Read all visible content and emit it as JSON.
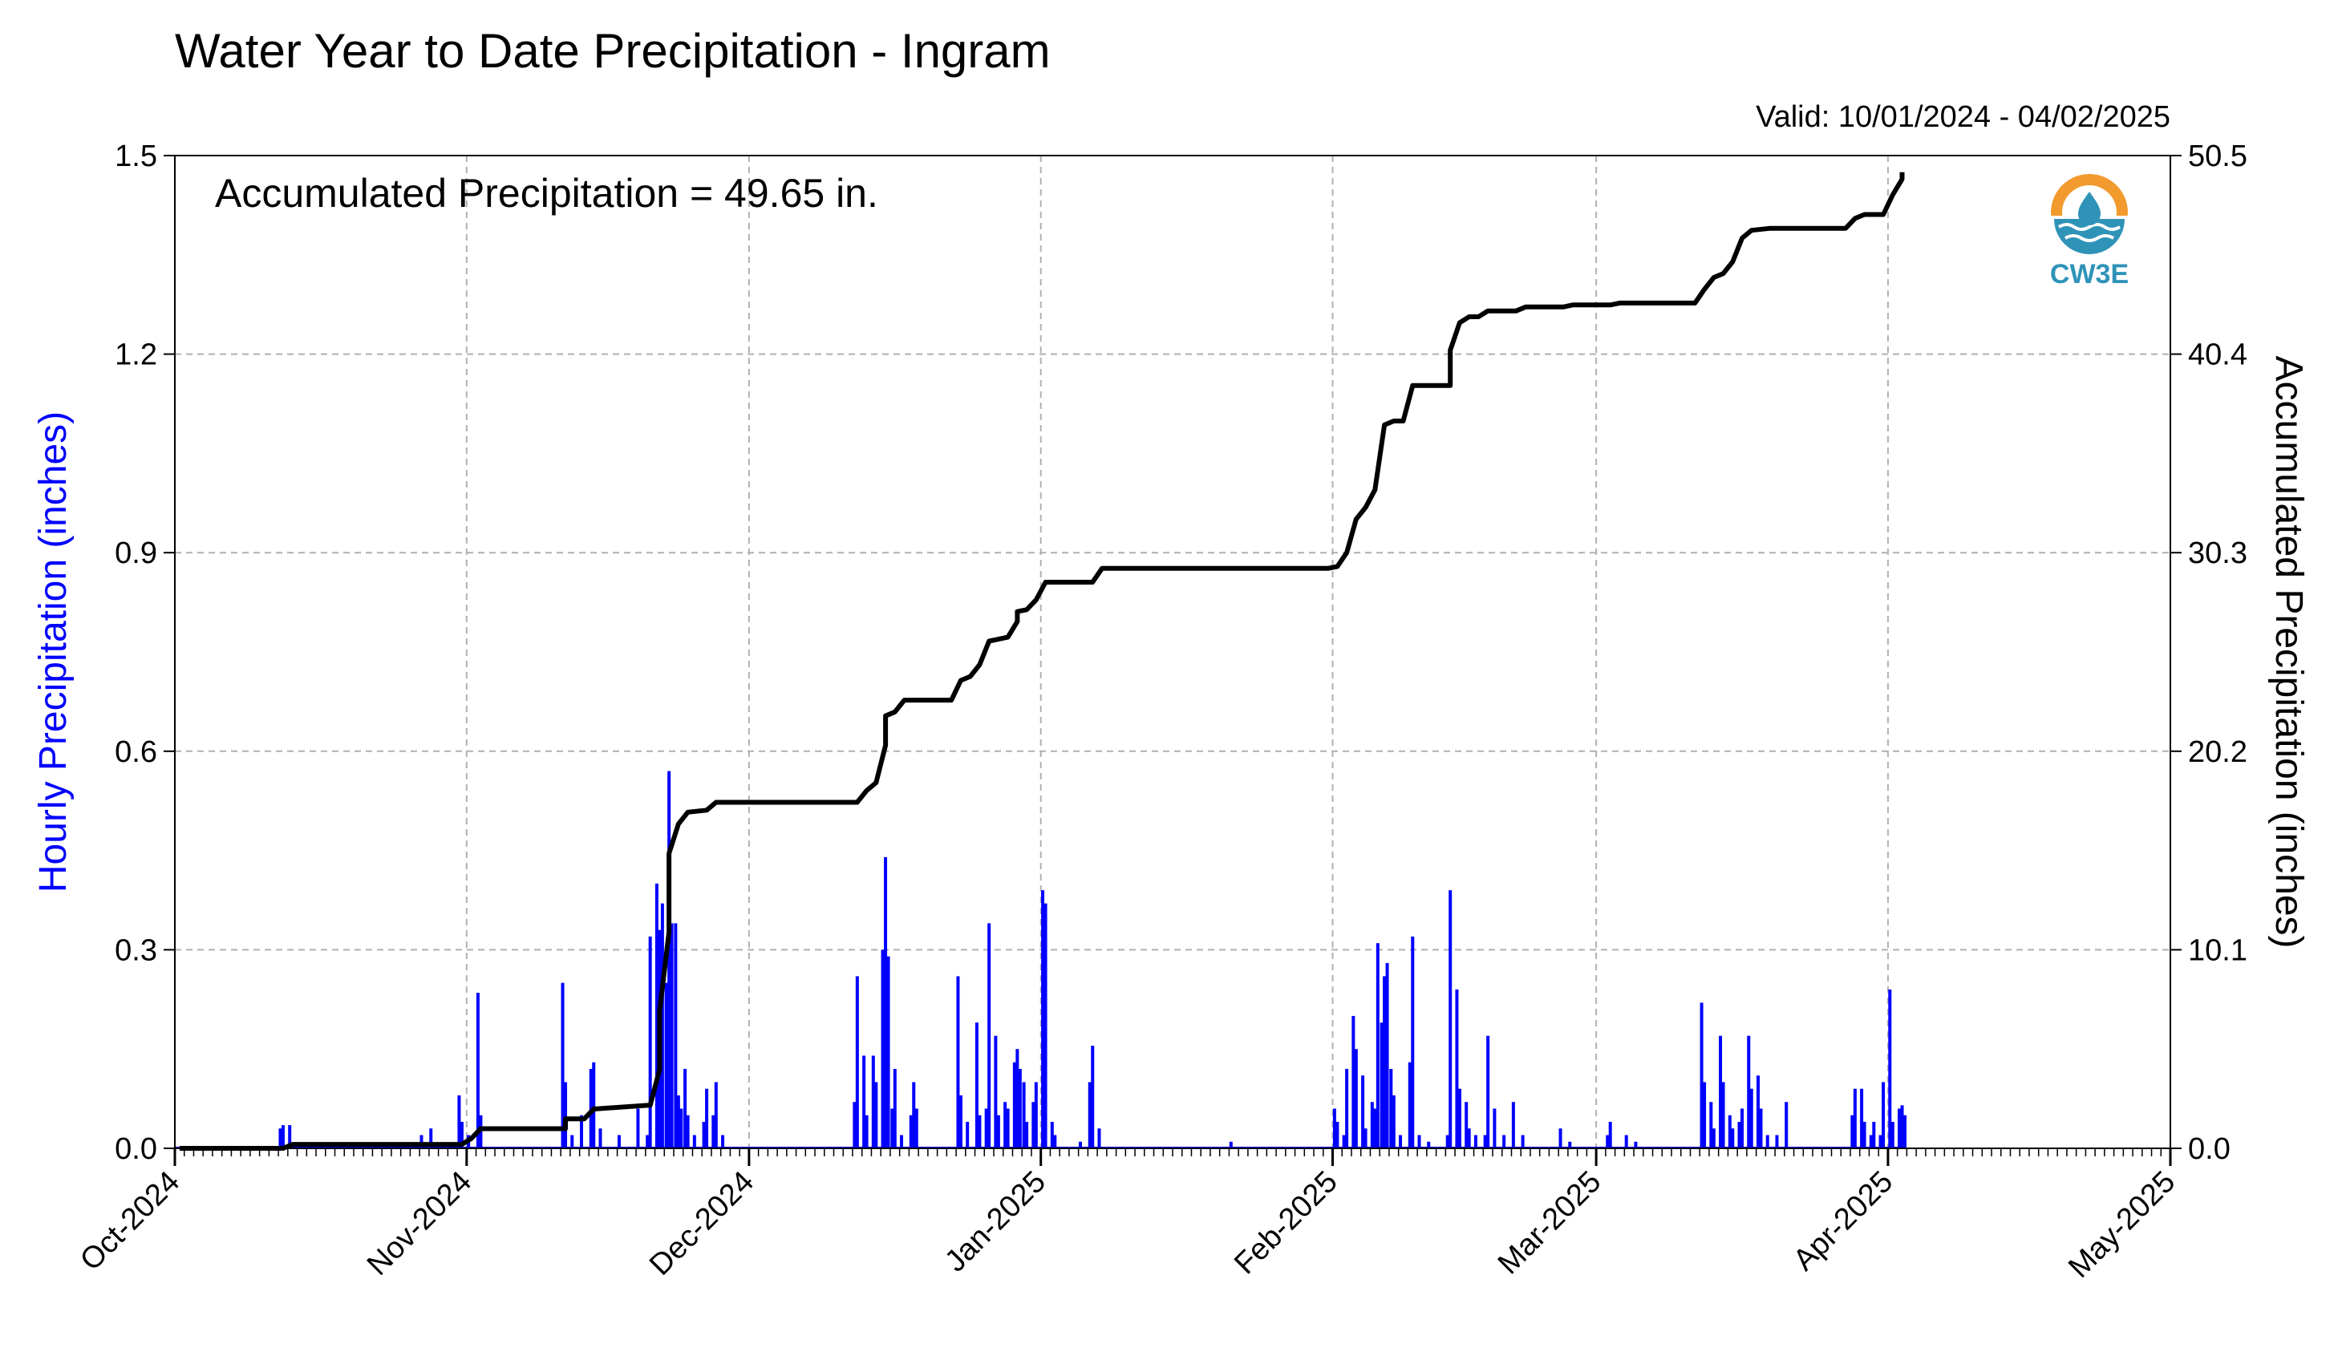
{
  "chart_data": {
    "type": "bar+line",
    "title": "Water Year to Date Precipitation - Ingram",
    "valid_text": "Valid: 10/01/2024 - 04/02/2025",
    "annotation": "Accumulated Precipitation = 49.65 in.",
    "logo_label": "CW3E",
    "ylabel_left": "Hourly Precipitation (inches)",
    "ylabel_right": "Accumulated Precipitation (inches)",
    "ylim_left": [
      0,
      1.5
    ],
    "ylim_right": [
      0,
      50.5
    ],
    "yticks_left": [
      "0.0",
      "0.3",
      "0.6",
      "0.9",
      "1.2",
      "1.5"
    ],
    "yticks_right": [
      "0.0",
      "10.1",
      "20.2",
      "30.3",
      "40.4",
      "50.5"
    ],
    "xlim": [
      "2024-10-01",
      "2025-05-01"
    ],
    "x_ticks": [
      {
        "label": "Oct-2024",
        "date": "2024-10-01"
      },
      {
        "label": "Nov-2024",
        "date": "2024-11-01"
      },
      {
        "label": "Dec-2024",
        "date": "2024-12-01"
      },
      {
        "label": "Jan-2025",
        "date": "2025-01-01"
      },
      {
        "label": "Feb-2025",
        "date": "2025-02-01"
      },
      {
        "label": "Mar-2025",
        "date": "2025-03-01"
      },
      {
        "label": "Apr-2025",
        "date": "2025-04-01"
      },
      {
        "label": "May-2025",
        "date": "2025-05-01"
      }
    ],
    "grid": true,
    "colors": {
      "hourly": "#0000ff",
      "accumulated": "#000000",
      "grid": "#b0b0b0",
      "logo_orange": "#f29a2e",
      "logo_blue": "#2f93b8"
    },
    "hourly_series": {
      "name": "Hourly Precipitation",
      "points": [
        [
          "2024-10-12",
          0.03
        ],
        [
          "2024-10-12",
          0.035
        ],
        [
          "2024-10-13",
          0.035
        ],
        [
          "2024-10-27",
          0.02
        ],
        [
          "2024-10-28",
          0.03
        ],
        [
          "2024-10-31",
          0.08
        ],
        [
          "2024-10-31",
          0.04
        ],
        [
          "2024-11-01",
          0.02
        ],
        [
          "2024-11-02",
          0.235
        ],
        [
          "2024-11-02",
          0.05
        ],
        [
          "2024-11-11",
          0.25
        ],
        [
          "2024-11-11",
          0.1
        ],
        [
          "2024-11-12",
          0.02
        ],
        [
          "2024-11-13",
          0.05
        ],
        [
          "2024-11-14",
          0.12
        ],
        [
          "2024-11-14",
          0.13
        ],
        [
          "2024-11-15",
          0.03
        ],
        [
          "2024-11-17",
          0.02
        ],
        [
          "2024-11-19",
          0.06
        ],
        [
          "2024-11-20",
          0.02
        ],
        [
          "2024-11-20",
          0.32
        ],
        [
          "2024-11-21",
          0.4
        ],
        [
          "2024-11-21",
          0.33
        ],
        [
          "2024-11-21",
          0.37
        ],
        [
          "2024-11-22",
          0.25
        ],
        [
          "2024-11-22",
          0.57
        ],
        [
          "2024-11-22",
          0.34
        ],
        [
          "2024-11-23",
          0.34
        ],
        [
          "2024-11-23",
          0.08
        ],
        [
          "2024-11-23",
          0.06
        ],
        [
          "2024-11-24",
          0.12
        ],
        [
          "2024-11-24",
          0.05
        ],
        [
          "2024-11-25",
          0.02
        ],
        [
          "2024-11-26",
          0.04
        ],
        [
          "2024-11-26",
          0.09
        ],
        [
          "2024-11-27",
          0.05
        ],
        [
          "2024-11-27",
          0.1
        ],
        [
          "2024-11-28",
          0.02
        ],
        [
          "2024-12-12",
          0.07
        ],
        [
          "2024-12-12",
          0.26
        ],
        [
          "2024-12-13",
          0.14
        ],
        [
          "2024-12-13",
          0.05
        ],
        [
          "2024-12-14",
          0.14
        ],
        [
          "2024-12-14",
          0.1
        ],
        [
          "2024-12-15",
          0.3
        ],
        [
          "2024-12-15",
          0.44
        ],
        [
          "2024-12-15",
          0.29
        ],
        [
          "2024-12-16",
          0.06
        ],
        [
          "2024-12-16",
          0.12
        ],
        [
          "2024-12-17",
          0.02
        ],
        [
          "2024-12-18",
          0.05
        ],
        [
          "2024-12-18",
          0.1
        ],
        [
          "2024-12-18",
          0.06
        ],
        [
          "2024-12-23",
          0.26
        ],
        [
          "2024-12-23",
          0.08
        ],
        [
          "2024-12-24",
          0.04
        ],
        [
          "2024-12-25",
          0.19
        ],
        [
          "2024-12-25",
          0.05
        ],
        [
          "2024-12-26",
          0.06
        ],
        [
          "2024-12-26",
          0.34
        ],
        [
          "2024-12-27",
          0.17
        ],
        [
          "2024-12-27",
          0.05
        ],
        [
          "2024-12-28",
          0.07
        ],
        [
          "2024-12-28",
          0.06
        ],
        [
          "2024-12-29",
          0.13
        ],
        [
          "2024-12-29",
          0.15
        ],
        [
          "2024-12-29",
          0.12
        ],
        [
          "2024-12-30",
          0.1
        ],
        [
          "2024-12-30",
          0.04
        ],
        [
          "2024-12-31",
          0.07
        ],
        [
          "2024-12-31",
          0.1
        ],
        [
          "2025-01-01",
          0.39
        ],
        [
          "2025-01-01",
          0.37
        ],
        [
          "2025-01-02",
          0.04
        ],
        [
          "2025-01-02",
          0.02
        ],
        [
          "2025-01-05",
          0.01
        ],
        [
          "2025-01-06",
          0.1
        ],
        [
          "2025-01-06",
          0.155
        ],
        [
          "2025-01-07",
          0.03
        ],
        [
          "2025-01-21",
          0.01
        ],
        [
          "2025-02-01",
          0.06
        ],
        [
          "2025-02-01",
          0.04
        ],
        [
          "2025-02-02",
          0.02
        ],
        [
          "2025-02-02",
          0.12
        ],
        [
          "2025-02-03",
          0.2
        ],
        [
          "2025-02-03",
          0.15
        ],
        [
          "2025-02-04",
          0.11
        ],
        [
          "2025-02-04",
          0.03
        ],
        [
          "2025-02-05",
          0.07
        ],
        [
          "2025-02-05",
          0.06
        ],
        [
          "2025-02-05",
          0.31
        ],
        [
          "2025-02-06",
          0.19
        ],
        [
          "2025-02-06",
          0.26
        ],
        [
          "2025-02-06",
          0.28
        ],
        [
          "2025-02-07",
          0.12
        ],
        [
          "2025-02-07",
          0.08
        ],
        [
          "2025-02-08",
          0.02
        ],
        [
          "2025-02-09",
          0.13
        ],
        [
          "2025-02-09",
          0.32
        ],
        [
          "2025-02-10",
          0.02
        ],
        [
          "2025-02-11",
          0.01
        ],
        [
          "2025-02-13",
          0.02
        ],
        [
          "2025-02-13",
          0.39
        ],
        [
          "2025-02-14",
          0.24
        ],
        [
          "2025-02-14",
          0.09
        ],
        [
          "2025-02-15",
          0.07
        ],
        [
          "2025-02-15",
          0.03
        ],
        [
          "2025-02-16",
          0.02
        ],
        [
          "2025-02-17",
          0.02
        ],
        [
          "2025-02-17",
          0.17
        ],
        [
          "2025-02-18",
          0.06
        ],
        [
          "2025-02-19",
          0.02
        ],
        [
          "2025-02-20",
          0.07
        ],
        [
          "2025-02-21",
          0.02
        ],
        [
          "2025-02-25",
          0.03
        ],
        [
          "2025-02-26",
          0.01
        ],
        [
          "2025-03-02",
          0.02
        ],
        [
          "2025-03-02",
          0.04
        ],
        [
          "2025-03-04",
          0.02
        ],
        [
          "2025-03-05",
          0.01
        ],
        [
          "2025-03-12",
          0.22
        ],
        [
          "2025-03-12",
          0.1
        ],
        [
          "2025-03-13",
          0.07
        ],
        [
          "2025-03-13",
          0.03
        ],
        [
          "2025-03-14",
          0.17
        ],
        [
          "2025-03-14",
          0.1
        ],
        [
          "2025-03-15",
          0.05
        ],
        [
          "2025-03-15",
          0.03
        ],
        [
          "2025-03-16",
          0.04
        ],
        [
          "2025-03-16",
          0.06
        ],
        [
          "2025-03-17",
          0.17
        ],
        [
          "2025-03-17",
          0.09
        ],
        [
          "2025-03-18",
          0.11
        ],
        [
          "2025-03-18",
          0.06
        ],
        [
          "2025-03-19",
          0.02
        ],
        [
          "2025-03-20",
          0.02
        ],
        [
          "2025-03-21",
          0.07
        ],
        [
          "2025-03-28",
          0.05
        ],
        [
          "2025-03-28",
          0.09
        ],
        [
          "2025-03-29",
          0.09
        ],
        [
          "2025-03-29",
          0.04
        ],
        [
          "2025-03-30",
          0.02
        ],
        [
          "2025-03-30",
          0.04
        ],
        [
          "2025-03-31",
          0.02
        ],
        [
          "2025-03-31",
          0.1
        ],
        [
          "2025-04-01",
          0.24
        ],
        [
          "2025-04-01",
          0.04
        ],
        [
          "2025-04-02",
          0.06
        ],
        [
          "2025-04-02",
          0.065
        ],
        [
          "2025-04-02",
          0.05
        ]
      ]
    },
    "accumulated_series": {
      "name": "Accumulated Precipitation",
      "points": [
        [
          "2024-10-01",
          0.0
        ],
        [
          "2024-10-12",
          0.0
        ],
        [
          "2024-10-13",
          0.2
        ],
        [
          "2024-10-31",
          0.2
        ],
        [
          "2024-11-01",
          0.5
        ],
        [
          "2024-11-02",
          1.0
        ],
        [
          "2024-11-11",
          1.0
        ],
        [
          "2024-11-11",
          1.5
        ],
        [
          "2024-11-13",
          1.5
        ],
        [
          "2024-11-14",
          2.0
        ],
        [
          "2024-11-20",
          2.2
        ],
        [
          "2024-11-21",
          4.0
        ],
        [
          "2024-11-21",
          7.0
        ],
        [
          "2024-11-22",
          11.0
        ],
        [
          "2024-11-22",
          15.0
        ],
        [
          "2024-11-23",
          16.5
        ],
        [
          "2024-11-24",
          17.1
        ],
        [
          "2024-11-26",
          17.2
        ],
        [
          "2024-11-27",
          17.6
        ],
        [
          "2024-12-12",
          17.6
        ],
        [
          "2024-12-13",
          18.2
        ],
        [
          "2024-12-14",
          18.6
        ],
        [
          "2024-12-15",
          20.5
        ],
        [
          "2024-12-15",
          22.0
        ],
        [
          "2024-12-16",
          22.2
        ],
        [
          "2024-12-17",
          22.8
        ],
        [
          "2024-12-22",
          22.8
        ],
        [
          "2024-12-23",
          23.8
        ],
        [
          "2024-12-24",
          24.0
        ],
        [
          "2024-12-25",
          24.6
        ],
        [
          "2024-12-26",
          25.8
        ],
        [
          "2024-12-27",
          25.9
        ],
        [
          "2024-12-28",
          26.0
        ],
        [
          "2024-12-29",
          26.8
        ],
        [
          "2024-12-29",
          27.3
        ],
        [
          "2024-12-30",
          27.4
        ],
        [
          "2024-12-31",
          27.9
        ],
        [
          "2025-01-01",
          28.8
        ],
        [
          "2025-01-06",
          28.8
        ],
        [
          "2025-01-07",
          29.5
        ],
        [
          "2025-01-31",
          29.5
        ],
        [
          "2025-02-01",
          29.6
        ],
        [
          "2025-02-02",
          30.3
        ],
        [
          "2025-02-03",
          32.0
        ],
        [
          "2025-02-04",
          32.6
        ],
        [
          "2025-02-05",
          33.5
        ],
        [
          "2025-02-06",
          36.8
        ],
        [
          "2025-02-07",
          37.0
        ],
        [
          "2025-02-08",
          37.0
        ],
        [
          "2025-02-09",
          38.8
        ],
        [
          "2025-02-13",
          38.8
        ],
        [
          "2025-02-13",
          40.6
        ],
        [
          "2025-02-14",
          42.0
        ],
        [
          "2025-02-15",
          42.3
        ],
        [
          "2025-02-16",
          42.3
        ],
        [
          "2025-02-17",
          42.6
        ],
        [
          "2025-02-20",
          42.6
        ],
        [
          "2025-02-21",
          42.8
        ],
        [
          "2025-02-25",
          42.8
        ],
        [
          "2025-02-26",
          42.9
        ],
        [
          "2025-03-02",
          42.9
        ],
        [
          "2025-03-03",
          43.0
        ],
        [
          "2025-03-11",
          43.0
        ],
        [
          "2025-03-12",
          43.7
        ],
        [
          "2025-03-13",
          44.3
        ],
        [
          "2025-03-14",
          44.5
        ],
        [
          "2025-03-15",
          45.1
        ],
        [
          "2025-03-16",
          46.3
        ],
        [
          "2025-03-17",
          46.7
        ],
        [
          "2025-03-19",
          46.8
        ],
        [
          "2025-03-27",
          46.8
        ],
        [
          "2025-03-28",
          47.3
        ],
        [
          "2025-03-29",
          47.5
        ],
        [
          "2025-03-31",
          47.5
        ],
        [
          "2025-04-01",
          48.5
        ],
        [
          "2025-04-02",
          49.3
        ],
        [
          "2025-04-02",
          49.65
        ]
      ]
    }
  }
}
